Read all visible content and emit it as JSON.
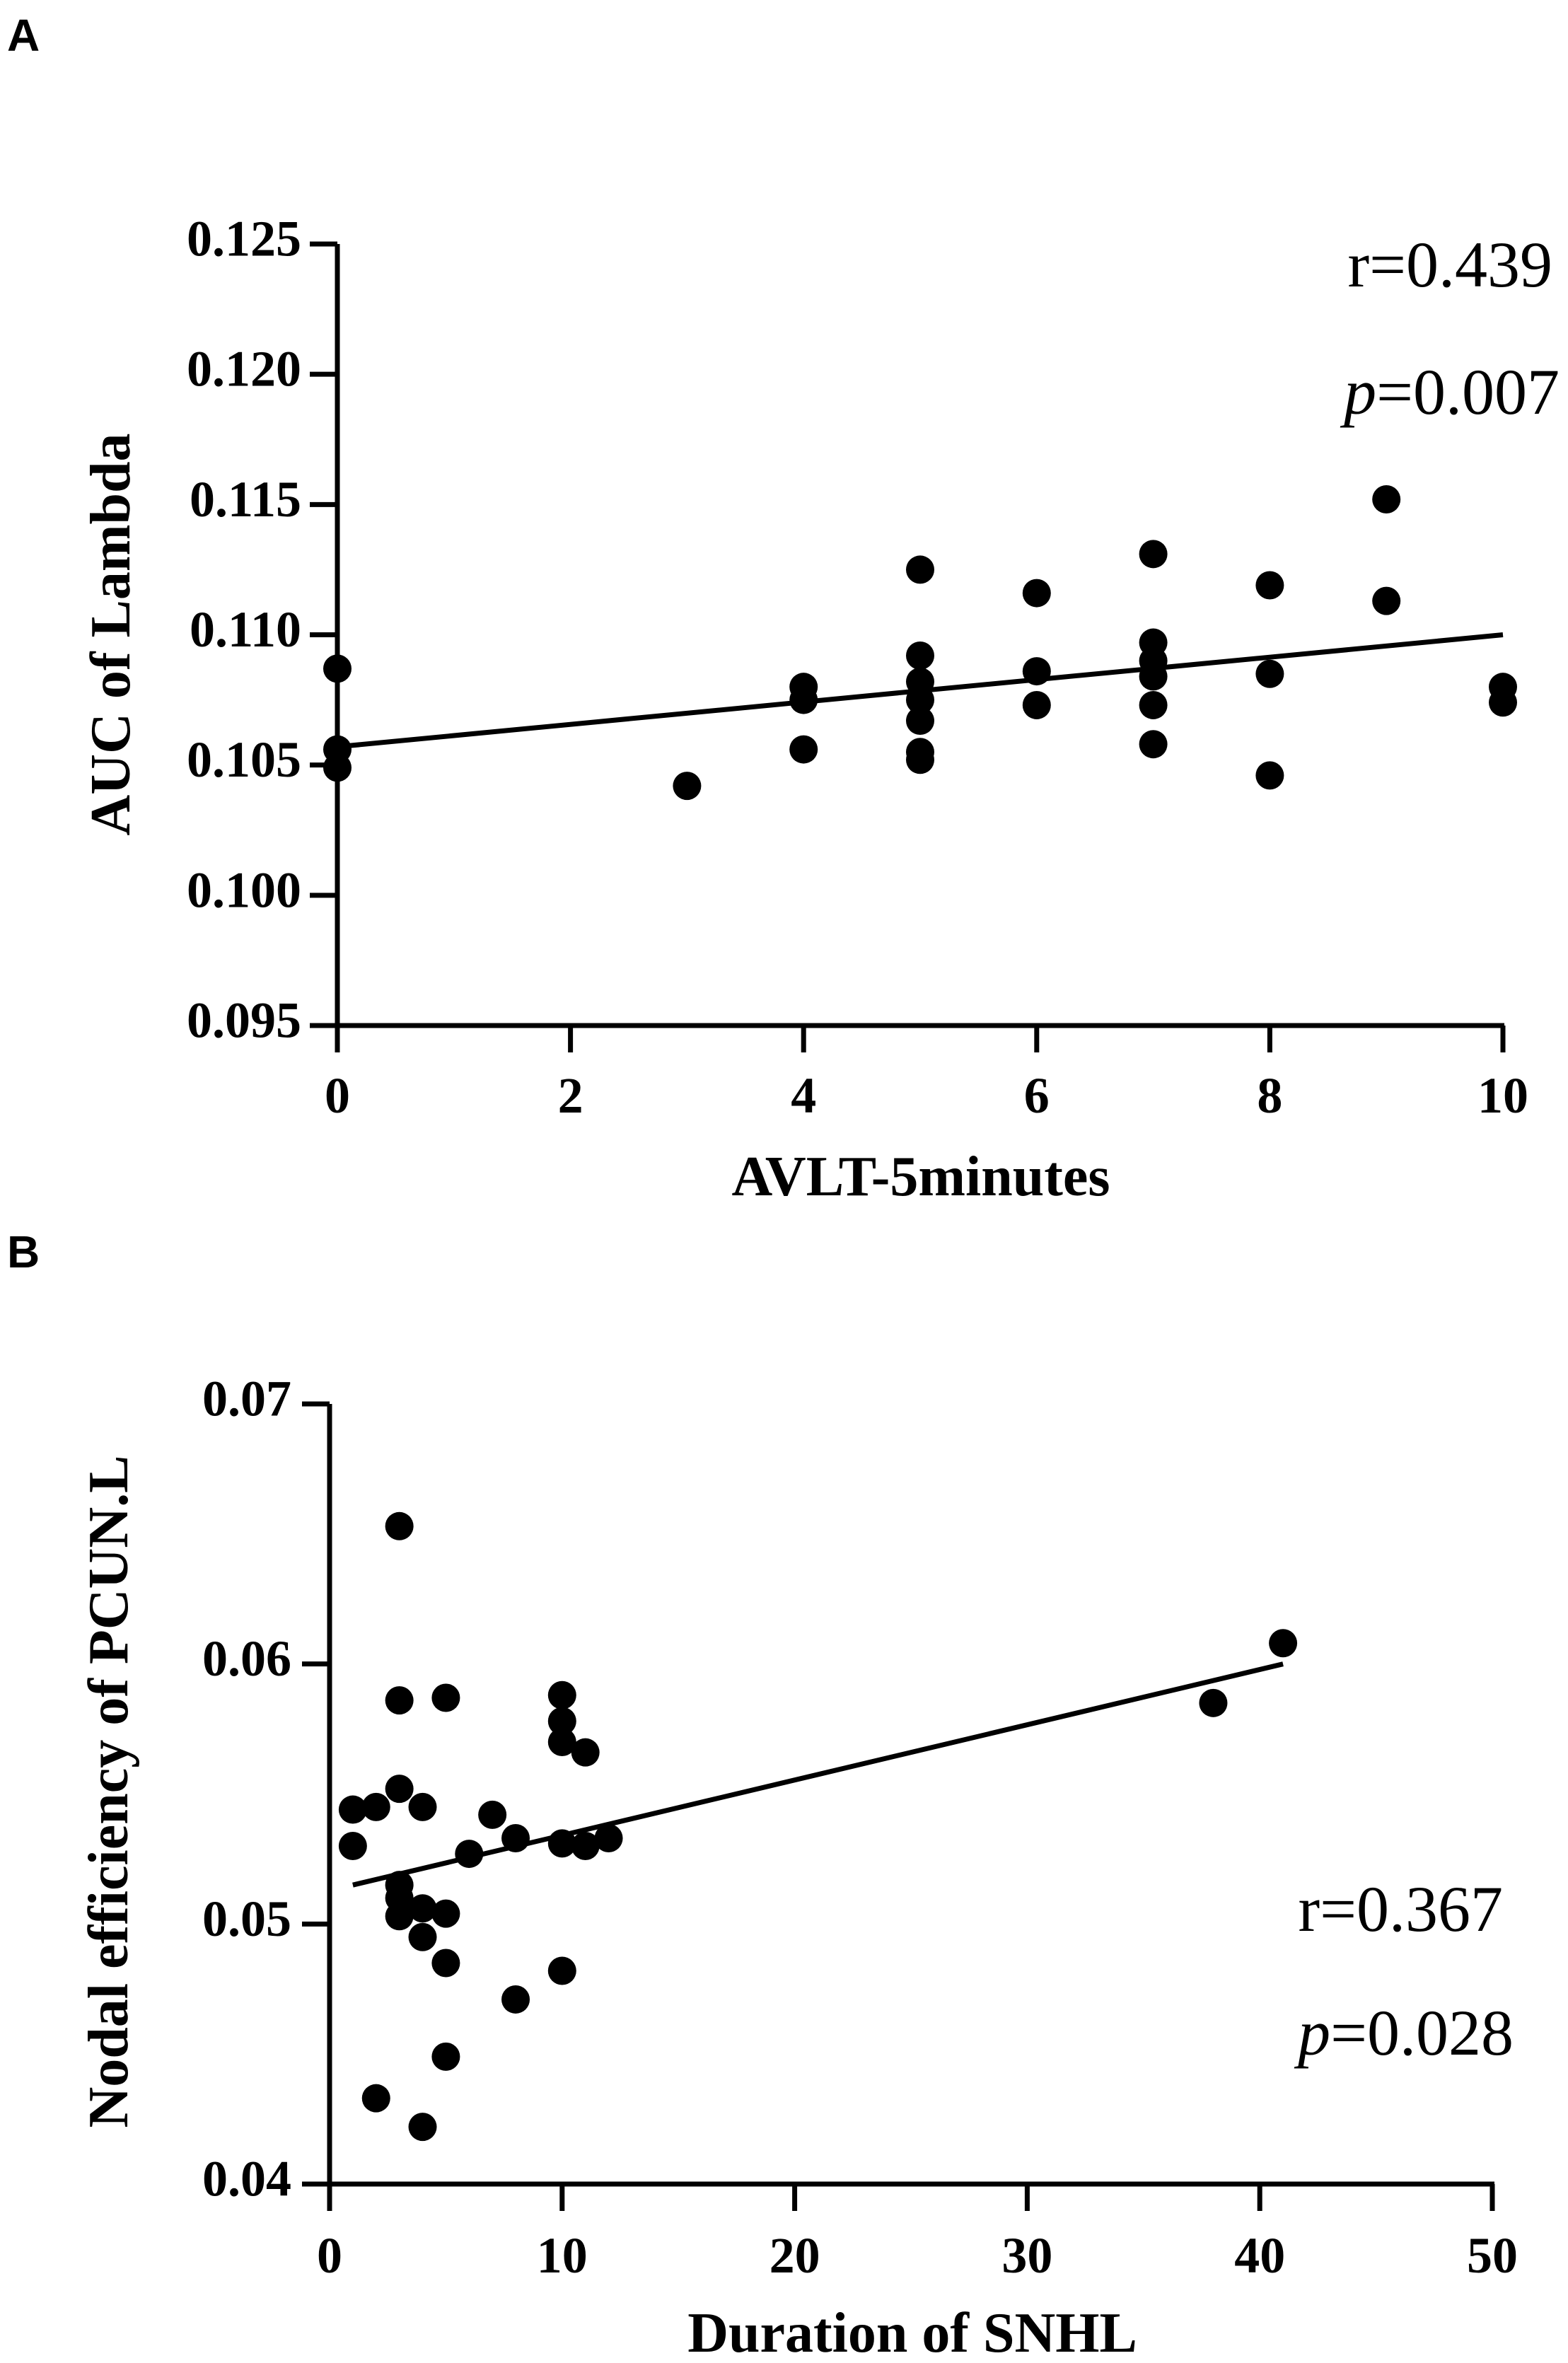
{
  "chart_data": [
    {
      "panel_label": "A",
      "type": "scatter",
      "xlabel": "AVLT-5minutes",
      "ylabel": "AUC of Lambda",
      "xlim": [
        0,
        10
      ],
      "ylim": [
        0.095,
        0.125
      ],
      "xticks": [
        0,
        2,
        4,
        6,
        8,
        10
      ],
      "xtick_labels": [
        "0",
        "2",
        "4",
        "6",
        "8",
        "10"
      ],
      "yticks": [
        0.095,
        0.1,
        0.105,
        0.11,
        0.115,
        0.12,
        0.125
      ],
      "ytick_labels": [
        "0.095",
        "0.100",
        "0.105",
        "0.110",
        "0.115",
        "0.120",
        "0.125"
      ],
      "annotation_r": "r=0.439",
      "annotation_p_symbol": "p",
      "annotation_p_value": "=0.007",
      "regression": {
        "x": [
          0,
          10
        ],
        "y": [
          0.1057,
          0.11
        ]
      },
      "points": [
        {
          "x": 0,
          "y": 0.1087
        },
        {
          "x": 0,
          "y": 0.1056
        },
        {
          "x": 0,
          "y": 0.1049
        },
        {
          "x": 3,
          "y": 0.1042
        },
        {
          "x": 4,
          "y": 0.108
        },
        {
          "x": 4,
          "y": 0.1075
        },
        {
          "x": 4,
          "y": 0.1056
        },
        {
          "x": 5,
          "y": 0.1125
        },
        {
          "x": 5,
          "y": 0.1092
        },
        {
          "x": 5,
          "y": 0.1082
        },
        {
          "x": 5,
          "y": 0.1075
        },
        {
          "x": 5,
          "y": 0.1067
        },
        {
          "x": 5,
          "y": 0.1055
        },
        {
          "x": 5,
          "y": 0.1052
        },
        {
          "x": 6,
          "y": 0.1116
        },
        {
          "x": 6,
          "y": 0.1086
        },
        {
          "x": 6,
          "y": 0.1073
        },
        {
          "x": 7,
          "y": 0.1131
        },
        {
          "x": 7,
          "y": 0.1097
        },
        {
          "x": 7,
          "y": 0.109
        },
        {
          "x": 7,
          "y": 0.1084
        },
        {
          "x": 7,
          "y": 0.1073
        },
        {
          "x": 7,
          "y": 0.1058
        },
        {
          "x": 8,
          "y": 0.1119
        },
        {
          "x": 8,
          "y": 0.1085
        },
        {
          "x": 8,
          "y": 0.1046
        },
        {
          "x": 9,
          "y": 0.1152
        },
        {
          "x": 9,
          "y": 0.1113
        },
        {
          "x": 10,
          "y": 0.108
        },
        {
          "x": 10,
          "y": 0.1074
        }
      ]
    },
    {
      "panel_label": "B",
      "type": "scatter",
      "xlabel": "Duration of SNHL",
      "ylabel": "Nodal efficiency of PCUN.L",
      "xlim": [
        0,
        50
      ],
      "ylim": [
        0.04,
        0.07
      ],
      "xticks": [
        0,
        10,
        20,
        30,
        40,
        50
      ],
      "xtick_labels": [
        "0",
        "10",
        "20",
        "30",
        "40",
        "50"
      ],
      "yticks": [
        0.04,
        0.05,
        0.06,
        0.07
      ],
      "ytick_labels": [
        "0.04",
        "0.05",
        "0.06",
        "0.07"
      ],
      "annotation_r": "r=0.367",
      "annotation_p_symbol": "p",
      "annotation_p_value": "=0.028",
      "regression": {
        "x": [
          1,
          41
        ],
        "y": [
          0.0515,
          0.06
        ]
      },
      "points": [
        {
          "x": 1,
          "y": 0.0544
        },
        {
          "x": 1,
          "y": 0.053
        },
        {
          "x": 2,
          "y": 0.0545
        },
        {
          "x": 2,
          "y": 0.0433
        },
        {
          "x": 3,
          "y": 0.0653
        },
        {
          "x": 3,
          "y": 0.0586
        },
        {
          "x": 3,
          "y": 0.0552
        },
        {
          "x": 3,
          "y": 0.0515
        },
        {
          "x": 3,
          "y": 0.051
        },
        {
          "x": 3,
          "y": 0.0503
        },
        {
          "x": 4,
          "y": 0.0545
        },
        {
          "x": 4,
          "y": 0.0506
        },
        {
          "x": 4,
          "y": 0.0495
        },
        {
          "x": 4,
          "y": 0.0422
        },
        {
          "x": 5,
          "y": 0.0587
        },
        {
          "x": 5,
          "y": 0.0504
        },
        {
          "x": 5,
          "y": 0.0485
        },
        {
          "x": 5,
          "y": 0.0449
        },
        {
          "x": 6,
          "y": 0.0527
        },
        {
          "x": 7,
          "y": 0.0542
        },
        {
          "x": 8,
          "y": 0.0533
        },
        {
          "x": 8,
          "y": 0.0471
        },
        {
          "x": 10,
          "y": 0.0588
        },
        {
          "x": 10,
          "y": 0.0578
        },
        {
          "x": 10,
          "y": 0.057
        },
        {
          "x": 10,
          "y": 0.0531
        },
        {
          "x": 10,
          "y": 0.0482
        },
        {
          "x": 11,
          "y": 0.0566
        },
        {
          "x": 11,
          "y": 0.053
        },
        {
          "x": 12,
          "y": 0.0533
        },
        {
          "x": 38,
          "y": 0.0585
        },
        {
          "x": 41,
          "y": 0.0608
        }
      ]
    }
  ]
}
